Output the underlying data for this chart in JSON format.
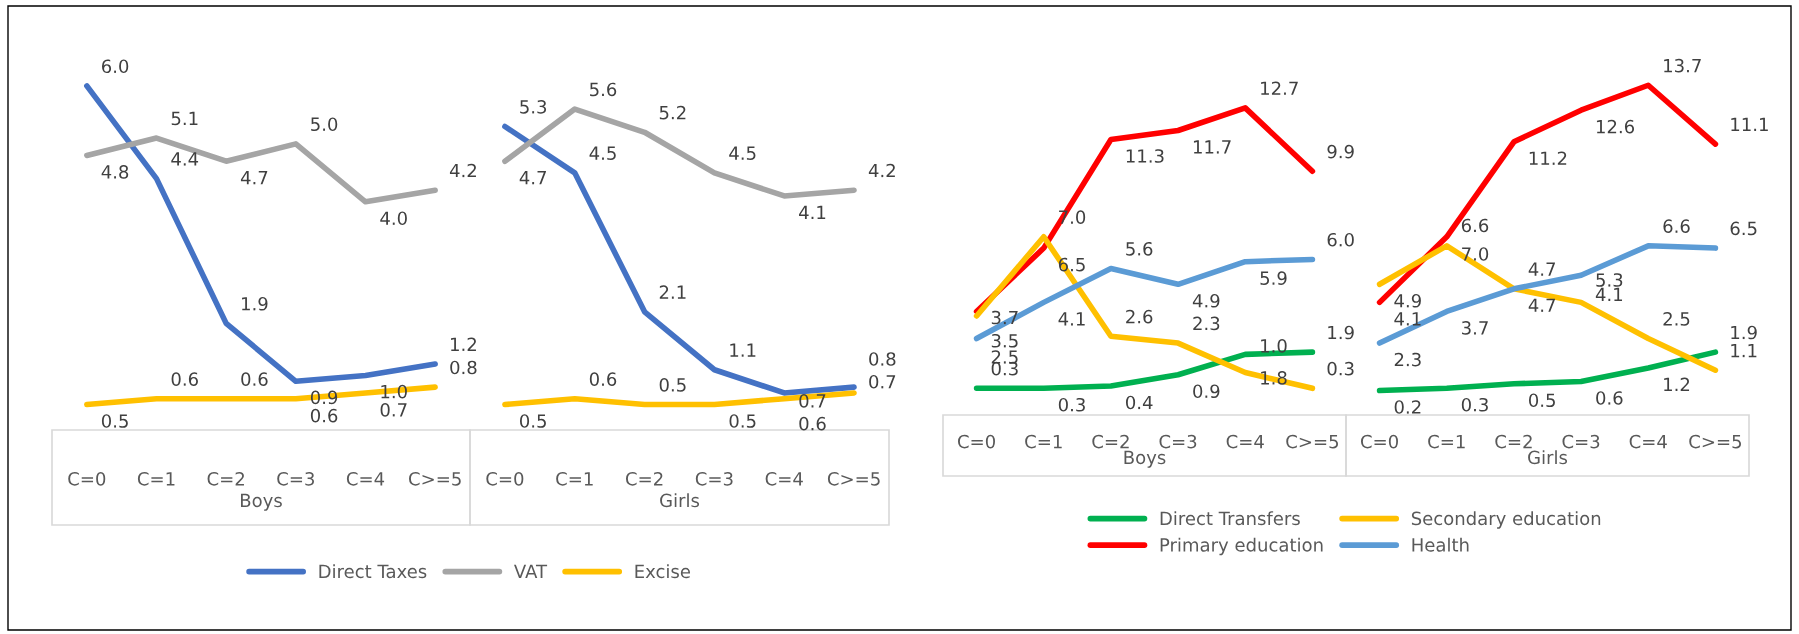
{
  "chart_data": [
    {
      "type": "line",
      "categories": [
        "C=0",
        "C=1",
        "C=2",
        "C=3",
        "C=4",
        "C>=5"
      ],
      "xlabel": "Boys",
      "legend": "bottom",
      "tick_labels": "x",
      "series": [
        {
          "name": "Direct Taxes",
          "color": "#4472c4",
          "values": [
            6.0,
            4.4,
            1.9,
            0.9,
            1.0,
            1.2
          ],
          "value_labels": [
            "6.0",
            "4.4",
            "1.9",
            "0.9",
            "1.0",
            "1.2"
          ]
        },
        {
          "name": "VAT",
          "color": "#a5a5a5",
          "values": [
            4.8,
            5.1,
            4.7,
            5.0,
            4.0,
            4.2
          ],
          "value_labels": [
            "4.8",
            "5.1",
            "4.7",
            "5.0",
            "4.0",
            "4.2"
          ]
        },
        {
          "name": "Excise",
          "color": "#ffc000",
          "values": [
            0.5,
            0.6,
            0.6,
            0.6,
            0.7,
            0.8
          ],
          "value_labels": [
            "0.5",
            "0.6",
            "0.6",
            "0.6",
            "0.7",
            "0.8"
          ]
        }
      ]
    },
    {
      "type": "line",
      "categories": [
        "C=0",
        "C=1",
        "C=2",
        "C=3",
        "C=4",
        "C>=5"
      ],
      "xlabel": "Girls",
      "tick_labels": "x",
      "series": [
        {
          "color": "#4472c4",
          "values": [
            5.3,
            4.5,
            2.1,
            1.1,
            0.7,
            0.8
          ],
          "value_labels": [
            "5.3",
            "4.5",
            "2.1",
            "1.1",
            "0.7",
            "0.8"
          ]
        },
        {
          "color": "#a5a5a5",
          "values": [
            4.7,
            5.6,
            5.2,
            4.5,
            4.1,
            4.2
          ],
          "value_labels": [
            "4.7",
            "5.6",
            "5.2",
            "4.5",
            "4.1",
            "4.2"
          ]
        },
        {
          "color": "#ffc000",
          "values": [
            0.5,
            0.6,
            0.5,
            0.5,
            0.6,
            0.7
          ],
          "value_labels": [
            "0.5",
            "0.6",
            "0.5",
            "0.5",
            "0.6",
            "0.7"
          ]
        }
      ]
    },
    {
      "type": "line",
      "categories": [
        "C=0",
        "C=1",
        "C=2",
        "C=3",
        "C=4",
        "C>=5"
      ],
      "xlabel": "Boys",
      "legend": "bottom",
      "tick_labels": "x",
      "series": [
        {
          "name": "Direct Transfers",
          "color": "#00b050",
          "values": [
            0.3,
            0.3,
            0.4,
            0.9,
            1.8,
            1.9
          ],
          "value_labels": [
            "0.3",
            "0.3",
            "0.4",
            "0.9",
            "1.8",
            "1.9"
          ]
        },
        {
          "name": "Primary education",
          "color": "#ff0000",
          "values": [
            3.7,
            6.5,
            11.3,
            11.7,
            12.7,
            9.9
          ],
          "value_labels": [
            "3.7",
            "6.5",
            "11.3",
            "11.7",
            "12.7",
            "9.9"
          ]
        },
        {
          "name": "Secondary education",
          "color": "#ffc000",
          "values": [
            3.5,
            7.0,
            2.6,
            2.3,
            1.0,
            0.3
          ],
          "value_labels": [
            "3.5",
            "7.0",
            "2.6",
            "2.3",
            "1.0",
            "0.3"
          ]
        },
        {
          "name": "Health",
          "color": "#5b9bd5",
          "values": [
            2.5,
            4.1,
            5.6,
            4.9,
            5.9,
            6.0
          ],
          "value_labels": [
            "2.5",
            "4.1",
            "5.6",
            "4.9",
            "5.9",
            "6.0"
          ]
        }
      ]
    },
    {
      "type": "line",
      "categories": [
        "C=0",
        "C=1",
        "C=2",
        "C=3",
        "C=4",
        "C>=5"
      ],
      "xlabel": "Girls",
      "tick_labels": "x",
      "series": [
        {
          "color": "#00b050",
          "values": [
            0.2,
            0.3,
            0.5,
            0.6,
            1.2,
            1.9
          ],
          "value_labels": [
            "0.2",
            "0.3",
            "0.5",
            "0.6",
            "1.2",
            "1.9"
          ]
        },
        {
          "color": "#ff0000",
          "values": [
            4.1,
            7.0,
            11.2,
            12.6,
            13.7,
            11.1
          ],
          "value_labels": [
            "4.1",
            "7.0",
            "11.2",
            "12.6",
            "13.7",
            "11.1"
          ]
        },
        {
          "color": "#ffc000",
          "values": [
            4.9,
            6.6,
            4.7,
            4.1,
            2.5,
            1.1
          ],
          "value_labels": [
            "4.9",
            "6.6",
            "4.7",
            "4.1",
            "2.5",
            "1.1"
          ]
        },
        {
          "color": "#5b9bd5",
          "values": [
            2.3,
            3.7,
            4.7,
            5.3,
            6.6,
            6.5
          ],
          "value_labels": [
            "2.3",
            "3.7",
            "4.7",
            "5.3",
            "6.6",
            "6.5"
          ]
        }
      ]
    }
  ]
}
